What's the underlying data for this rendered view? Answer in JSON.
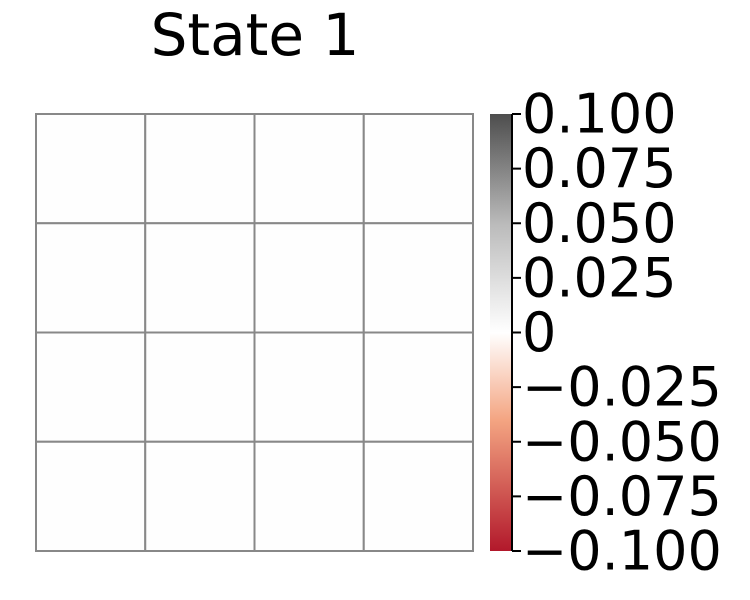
{
  "chart_data": {
    "type": "heatmap",
    "title": "State 1",
    "rows": 4,
    "cols": 4,
    "values": [
      [
        0.0,
        0.0,
        0.0,
        0.0
      ],
      [
        0.0,
        0.0,
        0.0,
        0.0
      ],
      [
        0.0,
        0.0,
        0.0,
        0.0
      ],
      [
        0.0,
        0.0,
        0.0,
        0.0
      ]
    ],
    "colorbar": {
      "min": -0.1,
      "max": 0.1,
      "ticks": [
        0.1,
        0.075,
        0.05,
        0.025,
        0,
        -0.025,
        -0.05,
        -0.075,
        -0.1
      ],
      "tick_labels": [
        "0.100",
        "0.075",
        "0.050",
        "0.025",
        "0",
        "−0.025",
        "−0.050",
        "−0.075",
        "−0.100"
      ],
      "colors": {
        "max": "#4d4d4d",
        "mid": "#ffffff",
        "min": "#b2182b"
      }
    },
    "grid_color": "#888888",
    "cell_color": "#fefefe"
  }
}
